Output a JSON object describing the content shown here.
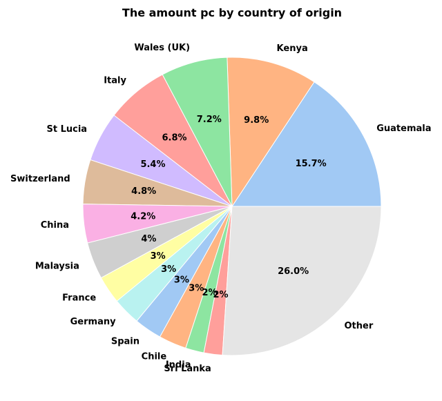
{
  "chart_data": {
    "type": "pie",
    "title": "The amount pc by country of origin",
    "start_angle_deg": 0,
    "direction": "counterclockwise",
    "slices": [
      {
        "label": "Guatemala",
        "value": 15.7,
        "pct_label": "15.7%",
        "color": "#a1c9f4"
      },
      {
        "label": "Kenya",
        "value": 9.8,
        "pct_label": "9.8%",
        "color": "#ffb482"
      },
      {
        "label": "Wales (UK)",
        "value": 7.2,
        "pct_label": "7.2%",
        "color": "#8de5a1"
      },
      {
        "label": "Italy",
        "value": 6.8,
        "pct_label": "6.8%",
        "color": "#ff9f9b"
      },
      {
        "label": "St Lucia",
        "value": 5.4,
        "pct_label": "5.4%",
        "color": "#d0bbff"
      },
      {
        "label": "Switzerland",
        "value": 4.8,
        "pct_label": "4.8%",
        "color": "#debb9b"
      },
      {
        "label": "China",
        "value": 4.2,
        "pct_label": "4.2%",
        "color": "#fab0e4"
      },
      {
        "label": "Malaysia",
        "value": 4.0,
        "pct_label": "4%",
        "color": "#cfcfcf"
      },
      {
        "label": "France",
        "value": 3.0,
        "pct_label": "3%",
        "color": "#fffea3"
      },
      {
        "label": "Germany",
        "value": 3.0,
        "pct_label": "3%",
        "color": "#b9f2f0"
      },
      {
        "label": "Spain",
        "value": 3.0,
        "pct_label": "3%",
        "color": "#a1c9f4"
      },
      {
        "label": "Chile",
        "value": 3.0,
        "pct_label": "3%",
        "color": "#ffb482"
      },
      {
        "label": "India",
        "value": 2.0,
        "pct_label": "2%",
        "color": "#8de5a1"
      },
      {
        "label": "Sri Lanka",
        "value": 2.0,
        "pct_label": "2%",
        "color": "#ff9f9b"
      },
      {
        "label": "Other",
        "value": 26.0,
        "pct_label": "26.0%",
        "color": "#e5e5e5"
      }
    ]
  }
}
